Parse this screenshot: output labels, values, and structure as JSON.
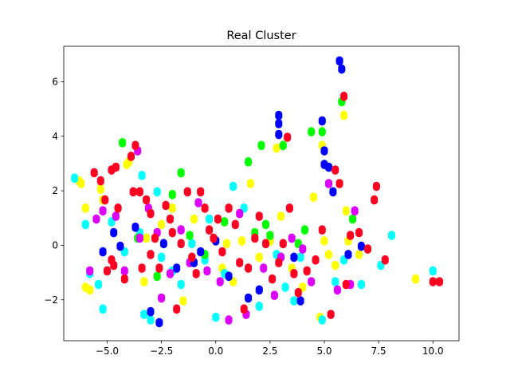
{
  "chart_data": {
    "type": "scatter",
    "title": "Real Cluster",
    "xlabel": "",
    "ylabel": "",
    "xlim": [
      -7.0,
      11.2
    ],
    "ylim": [
      -3.5,
      7.3
    ],
    "xticks": [
      -5.0,
      -2.5,
      0.0,
      2.5,
      5.0,
      7.5,
      10.0
    ],
    "xtick_labels": [
      "−5.0",
      "−2.5",
      "0.0",
      "2.5",
      "5.0",
      "7.5",
      "10.0"
    ],
    "yticks": [
      -2,
      0,
      2,
      4,
      6
    ],
    "ytick_labels": [
      "−2",
      "0",
      "2",
      "4",
      "6"
    ],
    "grid": false,
    "legend": false,
    "colors": {
      "blue": "#0000ff",
      "cyan": "#00ffff",
      "green": "#00ff00",
      "yellow": "#ffff00",
      "magenta": "#dd00ff",
      "red": "#ff0022"
    },
    "series": [
      {
        "color": "yellow",
        "points": [
          [
            -6.3,
            2.4
          ],
          [
            -6.2,
            2.3
          ],
          [
            -6.0,
            1.4
          ],
          [
            -6.0,
            -1.5
          ],
          [
            -5.8,
            -1.6
          ],
          [
            -5.2,
            1.7
          ],
          [
            -5.3,
            2.1
          ],
          [
            -4.1,
            3.0
          ],
          [
            -4.0,
            3.1
          ],
          [
            -3.3,
            -1.3
          ],
          [
            -3.2,
            0.3
          ],
          [
            -2.5,
            0.8
          ],
          [
            -2.0,
            1.4
          ],
          [
            -1.5,
            -2.0
          ],
          [
            -1.0,
            1.0
          ],
          [
            0.3,
            -0.8
          ],
          [
            0.5,
            0.1
          ],
          [
            0.8,
            -1.3
          ],
          [
            1.2,
            0.2
          ],
          [
            1.6,
            2.3
          ],
          [
            2.0,
            -0.4
          ],
          [
            2.5,
            0.2
          ],
          [
            2.8,
            3.6
          ],
          [
            3.0,
            1.1
          ],
          [
            3.5,
            -0.8
          ],
          [
            4.0,
            -1.5
          ],
          [
            4.5,
            1.8
          ],
          [
            4.8,
            -2.6
          ],
          [
            4.9,
            3.7
          ],
          [
            5.0,
            0.2
          ],
          [
            5.2,
            -0.3
          ],
          [
            5.5,
            -0.7
          ],
          [
            5.9,
            4.8
          ],
          [
            6.0,
            1.3
          ],
          [
            6.1,
            0.2
          ],
          [
            6.6,
            -0.3
          ],
          [
            9.2,
            -1.2
          ]
        ]
      },
      {
        "color": "cyan",
        "points": [
          [
            -6.5,
            2.5
          ],
          [
            -6.0,
            0.8
          ],
          [
            -5.8,
            -1.0
          ],
          [
            -5.4,
            -1.4
          ],
          [
            -5.2,
            -2.3
          ],
          [
            -4.8,
            0.9
          ],
          [
            -4.2,
            -0.2
          ],
          [
            -3.5,
            0.5
          ],
          [
            -3.4,
            2.6
          ],
          [
            -3.3,
            -2.5
          ],
          [
            -3.0,
            -2.7
          ],
          [
            -2.7,
            2.0
          ],
          [
            -2.5,
            -0.4
          ],
          [
            -2.0,
            -0.9
          ],
          [
            -1.6,
            -1.4
          ],
          [
            -1.1,
            0.1
          ],
          [
            -0.5,
            -0.5
          ],
          [
            -0.3,
            1.0
          ],
          [
            0.0,
            -2.6
          ],
          [
            0.4,
            -1.0
          ],
          [
            0.8,
            2.2
          ],
          [
            1.3,
            1.4
          ],
          [
            2.0,
            -2.2
          ],
          [
            2.8,
            -0.3
          ],
          [
            3.2,
            -1.5
          ],
          [
            3.6,
            -2.0
          ],
          [
            3.9,
            -0.4
          ],
          [
            4.9,
            -2.7
          ],
          [
            5.5,
            -1.3
          ],
          [
            5.9,
            -0.5
          ],
          [
            6.7,
            -1.4
          ],
          [
            7.6,
            -0.7
          ],
          [
            8.1,
            0.4
          ],
          [
            10.0,
            -0.9
          ]
        ]
      },
      {
        "color": "green",
        "points": [
          [
            -4.3,
            3.8
          ],
          [
            -3.6,
            0.3
          ],
          [
            -2.7,
            -1.1
          ],
          [
            -2.0,
            1.9
          ],
          [
            -1.6,
            2.7
          ],
          [
            -1.2,
            0.4
          ],
          [
            -0.5,
            -0.3
          ],
          [
            0.4,
            0.9
          ],
          [
            1.5,
            3.1
          ],
          [
            1.8,
            0.5
          ],
          [
            2.1,
            3.7
          ],
          [
            2.3,
            0.8
          ],
          [
            2.5,
            0.4
          ],
          [
            3.1,
            3.7
          ],
          [
            3.8,
            0.1
          ],
          [
            4.1,
            0.6
          ],
          [
            4.4,
            4.2
          ],
          [
            4.9,
            4.2
          ],
          [
            5.8,
            5.3
          ],
          [
            6.3,
            1.0
          ]
        ]
      },
      {
        "color": "magenta",
        "points": [
          [
            -5.8,
            -0.9
          ],
          [
            -5.5,
            1.0
          ],
          [
            -5.2,
            1.3
          ],
          [
            -4.6,
            1.1
          ],
          [
            -4.2,
            -0.9
          ],
          [
            -3.6,
            3.5
          ],
          [
            -3.5,
            0.3
          ],
          [
            -3.1,
            1.4
          ],
          [
            -2.7,
            0.5
          ],
          [
            -2.5,
            -1.9
          ],
          [
            -2.1,
            -1.0
          ],
          [
            -1.6,
            0.6
          ],
          [
            -1.2,
            -0.6
          ],
          [
            -0.8,
            1.6
          ],
          [
            -0.4,
            -0.9
          ],
          [
            0.2,
            -1.3
          ],
          [
            0.6,
            -2.7
          ],
          [
            1.1,
            1.2
          ],
          [
            1.4,
            -2.5
          ],
          [
            2.2,
            -0.8
          ],
          [
            2.7,
            -1.8
          ],
          [
            3.0,
            -0.4
          ],
          [
            3.5,
            0.3
          ],
          [
            4.0,
            -0.1
          ],
          [
            4.4,
            -1.3
          ],
          [
            5.2,
            2.3
          ],
          [
            5.6,
            -1.6
          ],
          [
            6.2,
            -1.4
          ],
          [
            6.4,
            1.3
          ]
        ]
      },
      {
        "color": "blue",
        "points": [
          [
            -5.2,
            -0.2
          ],
          [
            -4.7,
            0.5
          ],
          [
            -4.4,
            0.0
          ],
          [
            -3.7,
            0.7
          ],
          [
            -3.0,
            -2.4
          ],
          [
            -2.6,
            -2.8
          ],
          [
            -2.4,
            0.1
          ],
          [
            -1.8,
            -0.8
          ],
          [
            -1.0,
            -0.6
          ],
          [
            -0.7,
            -0.2
          ],
          [
            0.0,
            0.2
          ],
          [
            0.6,
            -1.1
          ],
          [
            1.5,
            -1.9
          ],
          [
            2.0,
            -1.6
          ],
          [
            2.9,
            4.1
          ],
          [
            2.9,
            4.5
          ],
          [
            2.9,
            4.8
          ],
          [
            3.6,
            -0.4
          ],
          [
            3.9,
            -2.0
          ],
          [
            4.9,
            4.6
          ],
          [
            5.0,
            3.5
          ],
          [
            5.0,
            3.0
          ],
          [
            5.2,
            2.9
          ],
          [
            5.4,
            2.0
          ],
          [
            5.7,
            6.8
          ],
          [
            5.8,
            6.5
          ],
          [
            6.1,
            -0.3
          ],
          [
            6.7,
            0.0
          ]
        ]
      },
      {
        "color": "red",
        "points": [
          [
            -5.6,
            2.7
          ],
          [
            -5.3,
            2.4
          ],
          [
            -5.1,
            1.7
          ],
          [
            -4.8,
            2.8
          ],
          [
            -4.6,
            2.9
          ],
          [
            -4.8,
            -0.5
          ],
          [
            -5.0,
            -0.9
          ],
          [
            -4.7,
            -0.7
          ],
          [
            -4.5,
            1.4
          ],
          [
            -4.2,
            -1.2
          ],
          [
            -3.9,
            3.3
          ],
          [
            -3.7,
            3.7
          ],
          [
            -3.8,
            2.0
          ],
          [
            -3.5,
            2.0
          ],
          [
            -3.2,
            1.7
          ],
          [
            -3.0,
            1.2
          ],
          [
            -3.4,
            -0.8
          ],
          [
            -3.0,
            -0.3
          ],
          [
            -2.8,
            0.3
          ],
          [
            -2.6,
            -0.8
          ],
          [
            -2.3,
            1.5
          ],
          [
            -2.1,
            1.0
          ],
          [
            -2.0,
            0.5
          ],
          [
            -1.8,
            -2.3
          ],
          [
            -1.6,
            0.1
          ],
          [
            -1.3,
            2.0
          ],
          [
            -1.1,
            -0.4
          ],
          [
            -0.9,
            -1.0
          ],
          [
            -0.7,
            2.0
          ],
          [
            -0.5,
            1.4
          ],
          [
            -0.3,
            0.6
          ],
          [
            -0.1,
            0.3
          ],
          [
            0.1,
            1.0
          ],
          [
            0.3,
            -0.2
          ],
          [
            0.6,
            1.4
          ],
          [
            0.9,
            0.8
          ],
          [
            1.1,
            -0.6
          ],
          [
            1.3,
            -2.3
          ],
          [
            1.5,
            -0.8
          ],
          [
            1.8,
            0.3
          ],
          [
            2.0,
            1.1
          ],
          [
            2.3,
            0.1
          ],
          [
            2.6,
            -1.2
          ],
          [
            2.9,
            -0.6
          ],
          [
            3.1,
            0.1
          ],
          [
            3.3,
            4.0
          ],
          [
            3.4,
            1.4
          ],
          [
            3.6,
            -1.0
          ],
          [
            3.8,
            -1.7
          ],
          [
            4.2,
            -0.9
          ],
          [
            4.6,
            -0.5
          ],
          [
            4.9,
            0.6
          ],
          [
            5.3,
            -2.5
          ],
          [
            5.5,
            2.8
          ],
          [
            5.7,
            2.3
          ],
          [
            5.9,
            5.5
          ],
          [
            6.0,
            -1.4
          ],
          [
            6.2,
            0.4
          ],
          [
            6.6,
            0.5
          ],
          [
            7.0,
            -0.1
          ],
          [
            7.4,
            2.2
          ],
          [
            7.3,
            1.7
          ],
          [
            7.8,
            -0.5
          ],
          [
            10.0,
            -1.3
          ],
          [
            10.3,
            -1.3
          ]
        ]
      }
    ]
  }
}
